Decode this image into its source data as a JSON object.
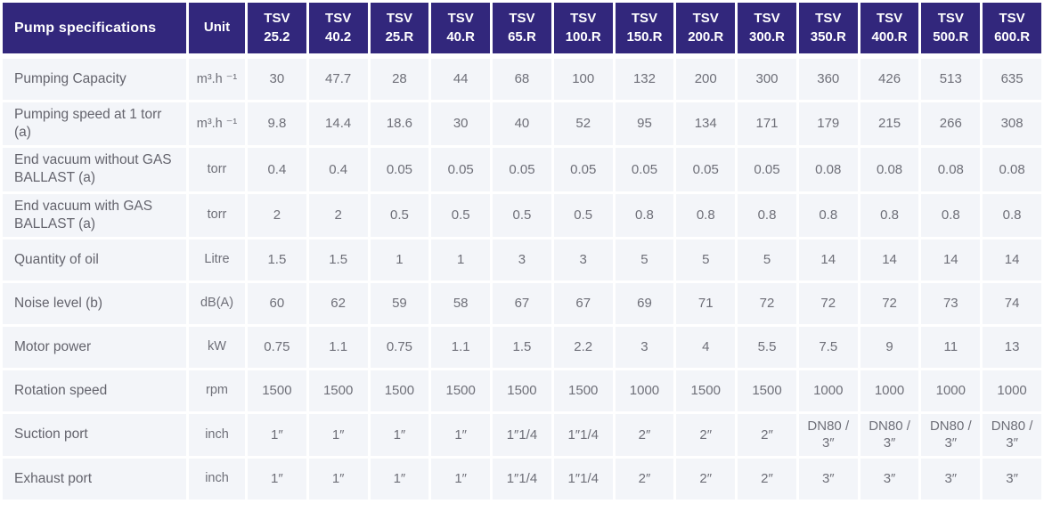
{
  "table": {
    "corner_header": "Pump specifications",
    "unit_header": "Unit",
    "models": [
      "TSV 25.2",
      "TSV 40.2",
      "TSV 25.R",
      "TSV 40.R",
      "TSV 65.R",
      "TSV 100.R",
      "TSV 150.R",
      "TSV 200.R",
      "TSV 300.R",
      "TSV 350.R",
      "TSV 400.R",
      "TSV 500.R",
      "TSV 600.R"
    ],
    "rows": [
      {
        "label": "Pumping Capacity",
        "unit": "m³.h ⁻¹",
        "values": [
          "30",
          "47.7",
          "28",
          "44",
          "68",
          "100",
          "132",
          "200",
          "300",
          "360",
          "426",
          "513",
          "635"
        ]
      },
      {
        "label": "Pumping speed at 1 torr (a)",
        "unit": "m³.h ⁻¹",
        "values": [
          "9.8",
          "14.4",
          "18.6",
          "30",
          "40",
          "52",
          "95",
          "134",
          "171",
          "179",
          "215",
          "266",
          "308"
        ]
      },
      {
        "label": "End vacuum without GAS BALLAST (a)",
        "unit": "torr",
        "values": [
          "0.4",
          "0.4",
          "0.05",
          "0.05",
          "0.05",
          "0.05",
          "0.05",
          "0.05",
          "0.05",
          "0.08",
          "0.08",
          "0.08",
          "0.08"
        ]
      },
      {
        "label": "End vacuum with GAS BALLAST (a)",
        "unit": "torr",
        "values": [
          "2",
          "2",
          "0.5",
          "0.5",
          "0.5",
          "0.5",
          "0.8",
          "0.8",
          "0.8",
          "0.8",
          "0.8",
          "0.8",
          "0.8"
        ]
      },
      {
        "label": "Quantity of oil",
        "unit": "Litre",
        "values": [
          "1.5",
          "1.5",
          "1",
          "1",
          "3",
          "3",
          "5",
          "5",
          "5",
          "14",
          "14",
          "14",
          "14"
        ]
      },
      {
        "label": "Noise level (b)",
        "unit": "dB(A)",
        "values": [
          "60",
          "62",
          "59",
          "58",
          "67",
          "67",
          "69",
          "71",
          "72",
          "72",
          "72",
          "73",
          "74"
        ]
      },
      {
        "label": "Motor power",
        "unit": "kW",
        "values": [
          "0.75",
          "1.1",
          "0.75",
          "1.1",
          "1.5",
          "2.2",
          "3",
          "4",
          "5.5",
          "7.5",
          "9",
          "11",
          "13"
        ]
      },
      {
        "label": "Rotation speed",
        "unit": "rpm",
        "values": [
          "1500",
          "1500",
          "1500",
          "1500",
          "1500",
          "1500",
          "1000",
          "1500",
          "1500",
          "1000",
          "1000",
          "1000",
          "1000"
        ]
      },
      {
        "label": "Suction port",
        "unit": "inch",
        "values": [
          "1″",
          "1″",
          "1″",
          "1″",
          "1″1/4",
          "1″1/4",
          "2″",
          "2″",
          "2″",
          "DN80 / 3″",
          "DN80 / 3″",
          "DN80 / 3″",
          "DN80 / 3″"
        ]
      },
      {
        "label": "Exhaust port",
        "unit": "inch",
        "values": [
          "1″",
          "1″",
          "1″",
          "1″",
          "1″1/4",
          "1″1/4",
          "2″",
          "2″",
          "2″",
          "3″",
          "3″",
          "3″",
          "3″"
        ]
      }
    ]
  },
  "colors": {
    "header_bg": "#32277C",
    "header_text": "#FFFFFF",
    "cell_bg": "#F3F5F9",
    "cell_text": "#6E6F78",
    "separator": "#FFFFFF"
  }
}
